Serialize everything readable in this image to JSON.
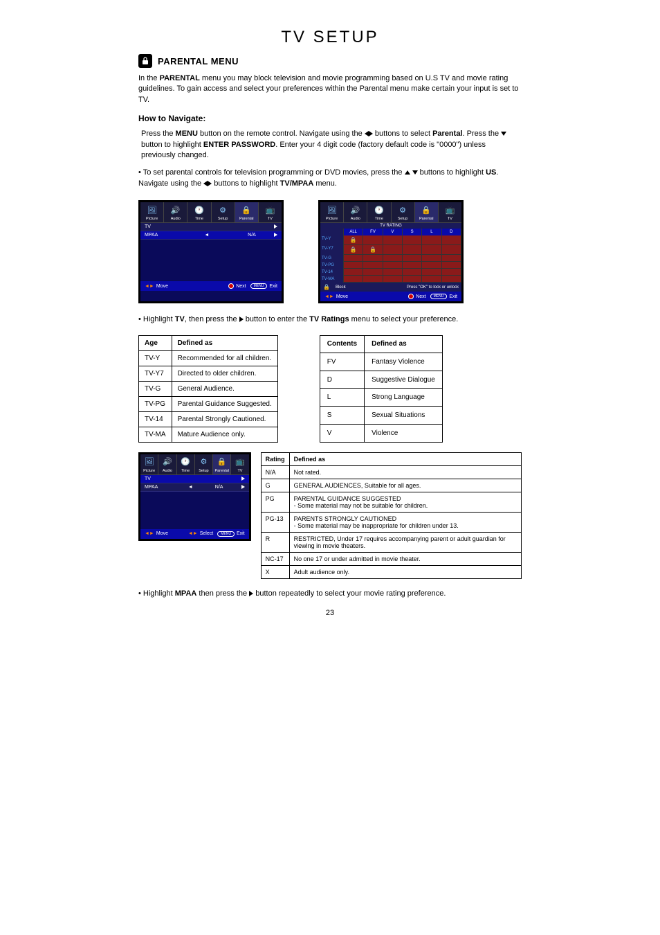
{
  "title": "TV SETUP",
  "section": "PARENTAL MENU",
  "intro_parts": [
    "In the ",
    "PARENTAL",
    " menu you may block television and movie programming based on U.S TV and movie rating guidelines. To gain access and select your preferences within the Parental menu make certain your input is set to TV."
  ],
  "howto": "How to Navigate:",
  "nav1": [
    "Press the ",
    "MENU",
    " button on the remote control. Navigate using the ",
    " buttons to select ",
    "Parental",
    ". Press the ",
    " button to highlight ",
    "ENTER PASSWORD",
    ". Enter your 4 digit code (factory default code is \"0000\") unless previously changed."
  ],
  "nav2": [
    "• To set parental controls for television programming or DVD movies, press the ",
    " buttons to highlight ",
    "US",
    ". Navigate using the ",
    " buttons to highlight ",
    "TV/MPAA",
    " menu."
  ],
  "tv_line": [
    "• Highlight ",
    "TV",
    ", then press the ",
    " button to enter the ",
    "TV Ratings",
    " menu to select your preference."
  ],
  "mpaa_line": [
    "• Highlight ",
    "MPAA",
    " then press the ",
    " button repeatedly to select your movie rating preference."
  ],
  "osd": {
    "tabs": [
      {
        "label": "Picture"
      },
      {
        "label": "Audio"
      },
      {
        "label": "Time"
      },
      {
        "label": "Setup"
      },
      {
        "label": "Parental"
      },
      {
        "label": "TV"
      }
    ],
    "menu1": {
      "rows": [
        {
          "c1": "TV",
          "c2": "",
          "c3": "",
          "arrow": true,
          "sel": false
        },
        {
          "c1": "MPAA",
          "c2": "◄",
          "c3": "N/A",
          "arrow": true,
          "sel": true
        }
      ],
      "footer": {
        "move": "Move",
        "next": "Next",
        "exit": "Exit",
        "btn": "MENU"
      }
    },
    "menu2": {
      "title": "TV   RATING",
      "head": [
        "",
        "ALL",
        "FV",
        "V",
        "S",
        "L",
        "D"
      ],
      "rows": [
        {
          "rh": "TV-Y",
          "cells": [
            "lock",
            "",
            "",
            "",
            "",
            ""
          ]
        },
        {
          "rh": "TV-Y7",
          "cells": [
            "lock",
            "lock",
            "",
            "",
            "",
            ""
          ]
        },
        {
          "rh": "TV-G",
          "cells": [
            "",
            "",
            "",
            "",
            "",
            ""
          ]
        },
        {
          "rh": "TV-PG",
          "cells": [
            "",
            "",
            "",
            "",
            "",
            ""
          ]
        },
        {
          "rh": "TV-14",
          "cells": [
            "",
            "",
            "",
            "",
            "",
            ""
          ]
        },
        {
          "rh": "TV-MA",
          "cells": [
            "",
            "",
            "",
            "",
            "",
            ""
          ]
        }
      ],
      "foot1": [
        "Block",
        "Press \"OK\" to lock or unlock"
      ],
      "footer": {
        "move": "Move",
        "next": "Next",
        "exit": "Exit",
        "btn": "MENU"
      }
    },
    "menu3": {
      "rows": [
        {
          "c1": "TV",
          "c2": "",
          "c3": "",
          "arrow": true,
          "sel": true
        },
        {
          "c1": "MPAA",
          "c2": "◄",
          "c3": "N/A",
          "arrow": true,
          "sel": false
        }
      ],
      "footer": {
        "move": "Move",
        "select": "Select",
        "exit": "Exit",
        "btn": "MENU"
      }
    }
  },
  "age_table": {
    "head": [
      "Age",
      "Defined as"
    ],
    "rows": [
      [
        "TV-Y",
        "Recommended for all children."
      ],
      [
        "TV-Y7",
        "Directed to older children."
      ],
      [
        "TV-G",
        "General Audience."
      ],
      [
        "TV-PG",
        "Parental Guidance Suggested."
      ],
      [
        "TV-14",
        "Parental Strongly Cautioned."
      ],
      [
        "TV-MA",
        "Mature Audience only."
      ]
    ]
  },
  "contents_table": {
    "head": [
      "Contents",
      "Defined as"
    ],
    "rows": [
      [
        "FV",
        "Fantasy Violence"
      ],
      [
        "D",
        "Suggestive Dialogue"
      ],
      [
        "L",
        "Strong Language"
      ],
      [
        "S",
        "Sexual Situations"
      ],
      [
        "V",
        "Violence"
      ]
    ]
  },
  "mpaa_table": {
    "head": [
      "Rating",
      "Defined as"
    ],
    "rows": [
      [
        "N/A",
        "Not rated."
      ],
      [
        "G",
        "GENERAL AUDIENCES, Suitable for all ages."
      ],
      [
        "PG",
        "PARENTAL GUIDANCE SUGGESTED\n- Some material may not be suitable for children."
      ],
      [
        "PG-13",
        "PARENTS STRONGLY CAUTIONED\n- Some material may be inappropriate for children under 13."
      ],
      [
        "R",
        "RESTRICTED, Under 17 requires accompanying parent or adult guardian for viewing in movie theaters."
      ],
      [
        "NC-17",
        "No one 17 or under admitted in movie theater."
      ],
      [
        "X",
        "Adult audience only."
      ]
    ]
  },
  "page": "23"
}
